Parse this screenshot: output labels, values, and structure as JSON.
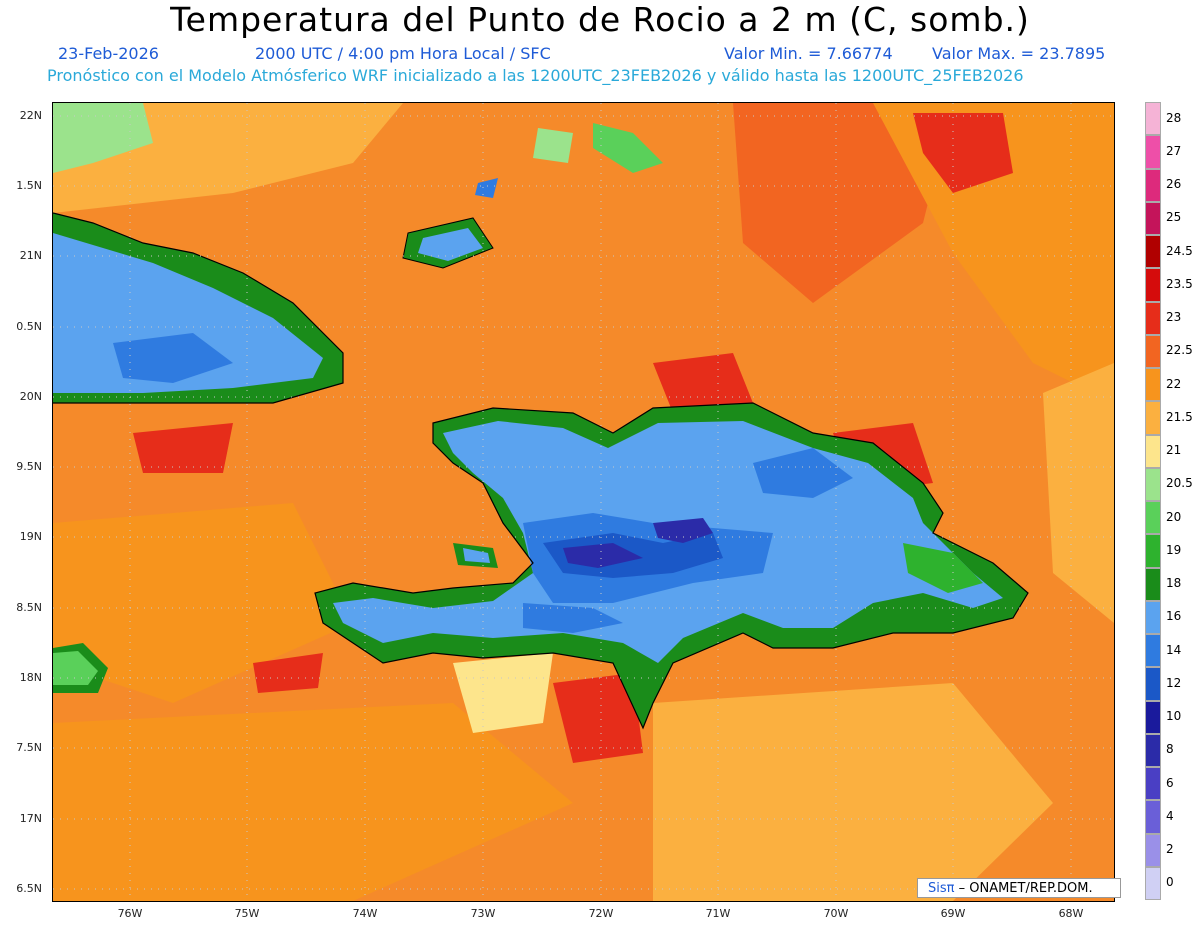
{
  "title": "Temperatura del Punto de Rocio a 2 m (C, somb.)",
  "header": {
    "date": "23-Feb-2026",
    "time": "2000 UTC / 4:00 pm Hora Local / SFC",
    "min_label": "Valor Min. = 7.66774",
    "max_label": "Valor Max. = 23.7895",
    "model_line": "Pronóstico con el Modelo Atmósferico WRF inicializado a las 1200UTC_23FEB2026 y válido hasta las  1200UTC_25FEB2026"
  },
  "axes": {
    "lat_labels": [
      "22N",
      "1.5N",
      "21N",
      "0.5N",
      "20N",
      "9.5N",
      "19N",
      "8.5N",
      "18N",
      "7.5N",
      "17N",
      "6.5N"
    ],
    "lon_labels": [
      "76W",
      "75W",
      "74W",
      "73W",
      "72W",
      "71W",
      "70W",
      "69W",
      "68W"
    ]
  },
  "colorbar": {
    "labels": [
      "28",
      "27",
      "26",
      "25",
      "24.5",
      "23.5",
      "23",
      "22.5",
      "22",
      "21.5",
      "21",
      "20.5",
      "20",
      "19",
      "18",
      "16",
      "14",
      "12",
      "10",
      "8",
      "6",
      "4",
      "2",
      "0"
    ],
    "colors": [
      "#f5b3d6",
      "#ee4fa8",
      "#dd2a7c",
      "#c4145a",
      "#b00000",
      "#d50c0c",
      "#e62d1a",
      "#f26521",
      "#f7941d",
      "#fbb040",
      "#fde58c",
      "#9be38c",
      "#5ad05a",
      "#2eb22e",
      "#1a8c1a",
      "#5ba3ef",
      "#2f7be0",
      "#1b58c7",
      "#1a1a9c",
      "#2b2ba8",
      "#4a3fc4",
      "#6a5fd8",
      "#9a90e8",
      "#d0d0f4"
    ]
  },
  "credit": {
    "brand_prefix": "Sis",
    "brand_pi": "π",
    "text": "– ONAMET/REP.DOM."
  }
}
